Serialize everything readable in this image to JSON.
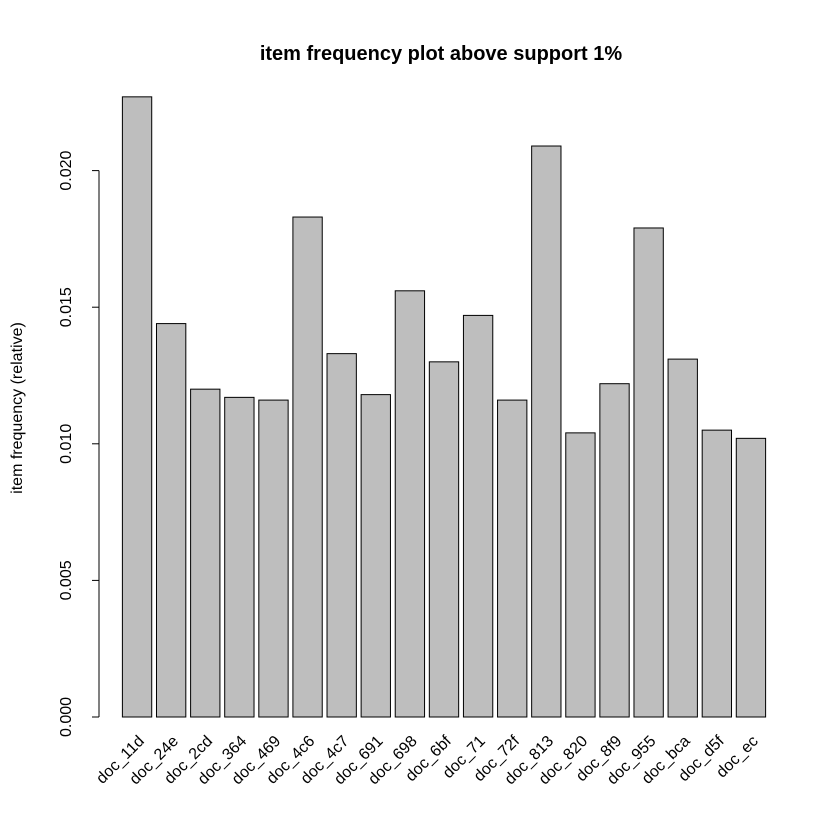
{
  "chart_data": {
    "type": "bar",
    "title": "item frequency plot above support 1%",
    "xlabel": "",
    "ylabel": "item frequency (relative)",
    "ylim": [
      0,
      0.0226
    ],
    "yticks": [
      "0.000",
      "0.005",
      "0.010",
      "0.015",
      "0.020"
    ],
    "categories": [
      "doc_11d",
      "doc_24e",
      "doc_2cd",
      "doc_364",
      "doc_469",
      "doc_4c6",
      "doc_4c7",
      "doc_691",
      "doc_698",
      "doc_6bf",
      "doc_71",
      "doc_72f",
      "doc_813",
      "doc_820",
      "doc_8f9",
      "doc_955",
      "doc_bca",
      "doc_d5f",
      "doc_ec"
    ],
    "values": [
      0.0227,
      0.0144,
      0.012,
      0.0117,
      0.0116,
      0.0183,
      0.0133,
      0.0118,
      0.0156,
      0.013,
      0.0147,
      0.0116,
      0.0209,
      0.0104,
      0.0122,
      0.0179,
      0.0131,
      0.0105,
      0.0102
    ],
    "bar_color": "#bebebe",
    "grid": false,
    "legend": "none"
  }
}
